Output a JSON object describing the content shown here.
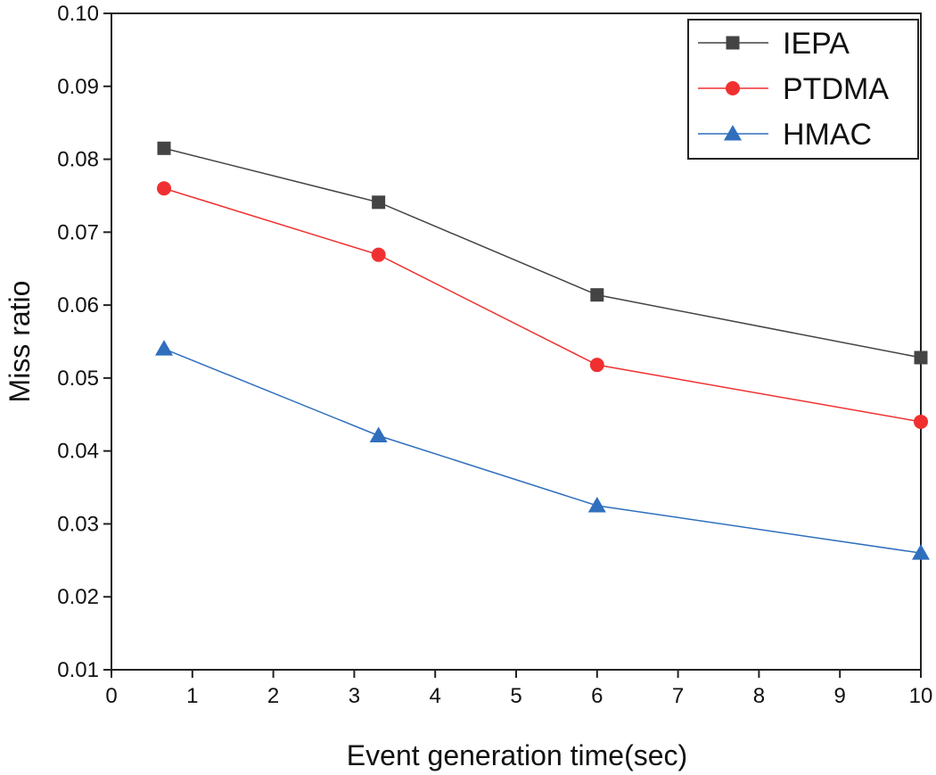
{
  "chart_data": {
    "type": "line",
    "title": "",
    "xlabel": "Event generation time(sec)",
    "ylabel": "Miss ratio",
    "xlim": [
      0,
      10
    ],
    "ylim": [
      0.01,
      0.1
    ],
    "x_ticks": [
      "0",
      "1",
      "2",
      "3",
      "4",
      "5",
      "6",
      "7",
      "8",
      "9",
      "10"
    ],
    "y_ticks": [
      "0.01",
      "0.02",
      "0.03",
      "0.04",
      "0.05",
      "0.06",
      "0.07",
      "0.08",
      "0.09",
      "0.10"
    ],
    "grid": false,
    "legend_position": "top-right",
    "series": [
      {
        "name": "IEPA",
        "color": "#444444",
        "marker": "square",
        "x": [
          0.65,
          3.3,
          6,
          10
        ],
        "y": [
          0.0815,
          0.0741,
          0.0614,
          0.0528
        ]
      },
      {
        "name": "PTDMA",
        "color": "#f03030",
        "marker": "circle",
        "x": [
          0.65,
          3.3,
          6,
          10
        ],
        "y": [
          0.076,
          0.0669,
          0.0518,
          0.044
        ]
      },
      {
        "name": "HMAC",
        "color": "#2f6fbe",
        "marker": "triangle",
        "x": [
          0.65,
          3.3,
          6,
          10
        ],
        "y": [
          0.054,
          0.0421,
          0.0325,
          0.026
        ]
      }
    ]
  }
}
